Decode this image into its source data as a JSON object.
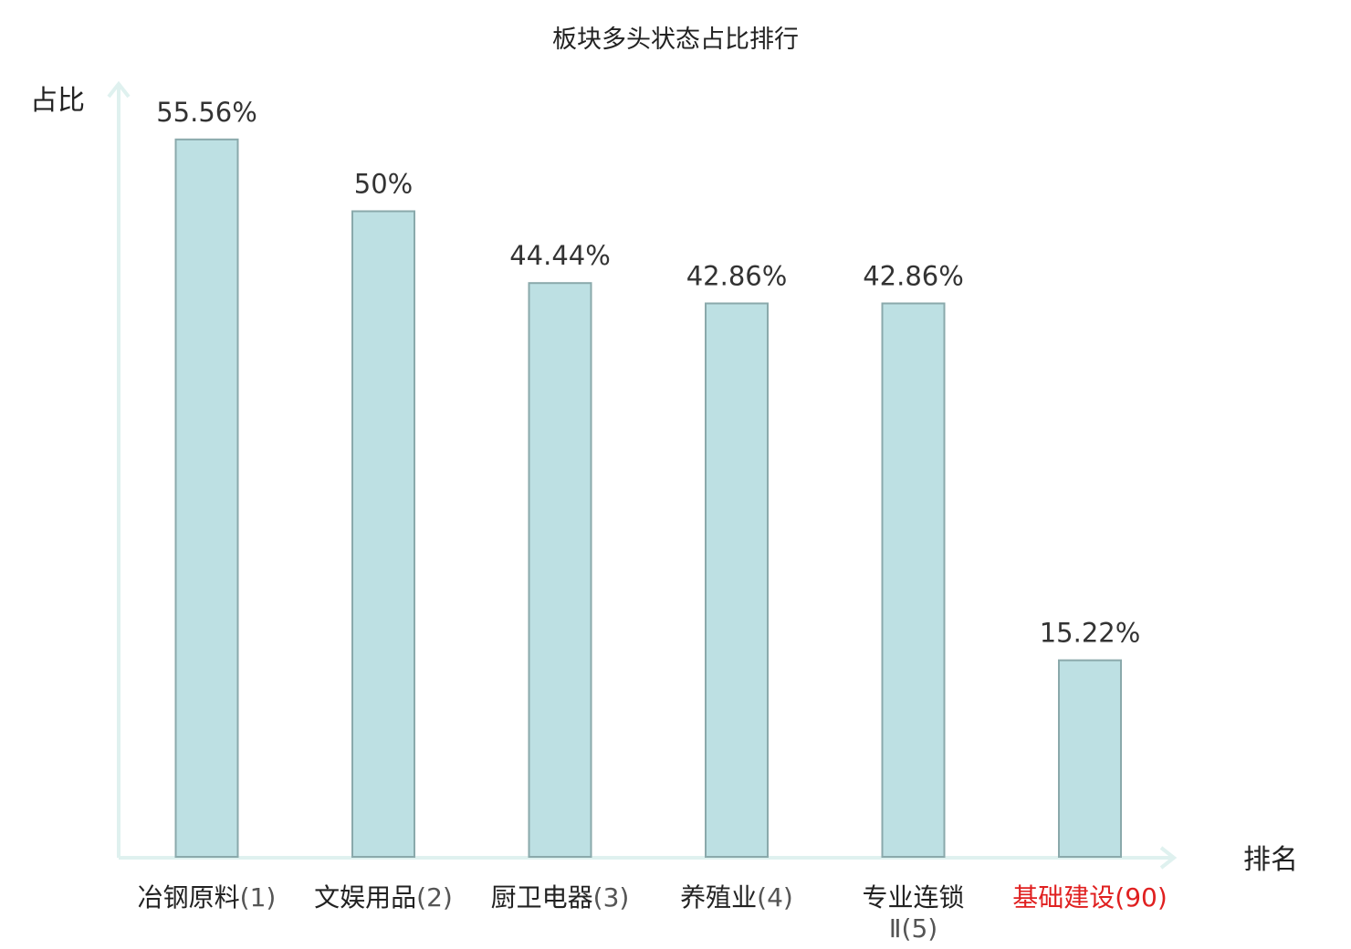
{
  "chart_data": {
    "type": "bar",
    "title": "板块多头状态占比排行",
    "ylabel": "占比",
    "xlabel": "排名",
    "ylim": [
      0,
      60
    ],
    "grid": false,
    "categories": [
      {
        "name": "冶钢原料",
        "rank": "(1)"
      },
      {
        "name": "文娱用品",
        "rank": "(2)"
      },
      {
        "name": "厨卫电器",
        "rank": "(3)"
      },
      {
        "name": "养殖业",
        "rank": "(4)"
      },
      {
        "name": "专业连锁",
        "name2": "Ⅱ",
        "rank": "(5)"
      },
      {
        "name": "基础建设",
        "rank": "(90)",
        "highlight": true
      }
    ],
    "values": [
      55.56,
      50,
      44.44,
      42.86,
      42.86,
      15.22
    ],
    "value_labels": [
      "55.56%",
      "50%",
      "44.44%",
      "42.86%",
      "42.86%",
      "15.22%"
    ],
    "colors": {
      "bar_fill": "#bde0e3",
      "bar_stroke": "#8aa9ab",
      "axis": "#dff1ef",
      "highlight": "#e02020"
    }
  }
}
